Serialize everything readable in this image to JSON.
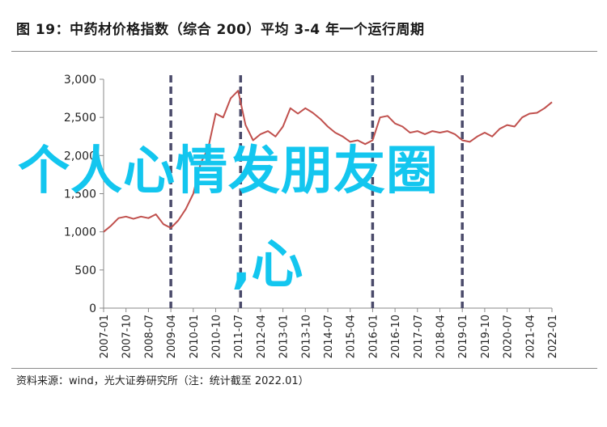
{
  "header": {
    "title": "图 19：中药材价格指数（综合 200）平均 3-4 年一个运行周期"
  },
  "footer": {
    "source": "资料来源：wind，光大证券研究所（注：统计截至 2022.01）"
  },
  "overlay": {
    "line1": "个人心情发朋友圈",
    "line2": ",心"
  },
  "chart_data": {
    "type": "line",
    "title": "",
    "xlabel": "",
    "ylabel": "",
    "ylim": [
      0,
      3000
    ],
    "yticks": [
      0,
      500,
      1000,
      1500,
      2000,
      2500,
      3000
    ],
    "ytick_labels": [
      "0",
      "500",
      "1,000",
      "1,500",
      "2,000",
      "2,500",
      "3,000"
    ],
    "xticks": [
      "2007-01",
      "2007-10",
      "2008-07",
      "2009-04",
      "2010-01",
      "2010-10",
      "2011-07",
      "2012-04",
      "2013-01",
      "2013-10",
      "2014-07",
      "2015-04",
      "2016-01",
      "2016-10",
      "2017-07",
      "2018-04",
      "2019-01",
      "2019-10",
      "2020-07",
      "2021-04",
      "2022-01"
    ],
    "grid": false,
    "legend": "none",
    "line_color": "#c0504d",
    "cycle_marker_color": "#4a4a6a",
    "cycle_markers": [
      "2009-04",
      "2011-08",
      "2016-01",
      "2019-01"
    ],
    "series": [
      {
        "x": [
          "2007-01",
          "2007-04",
          "2007-07",
          "2007-10",
          "2008-01",
          "2008-04",
          "2008-07",
          "2008-10",
          "2009-01",
          "2009-04",
          "2009-07",
          "2009-10",
          "2010-01",
          "2010-04",
          "2010-07",
          "2010-10",
          "2011-01",
          "2011-04",
          "2011-07",
          "2011-10",
          "2012-01",
          "2012-04",
          "2012-07",
          "2012-10",
          "2013-01",
          "2013-04",
          "2013-07",
          "2013-10",
          "2014-01",
          "2014-04",
          "2014-07",
          "2014-10",
          "2015-01",
          "2015-04",
          "2015-07",
          "2015-10",
          "2016-01",
          "2016-04",
          "2016-07",
          "2016-10",
          "2017-01",
          "2017-04",
          "2017-07",
          "2017-10",
          "2018-01",
          "2018-04",
          "2018-07",
          "2018-10",
          "2019-01",
          "2019-04",
          "2019-07",
          "2019-10",
          "2020-01",
          "2020-04",
          "2020-07",
          "2020-10",
          "2021-01",
          "2021-04",
          "2021-07",
          "2021-10",
          "2022-01"
        ],
        "values": [
          1000,
          1080,
          1180,
          1200,
          1170,
          1200,
          1180,
          1230,
          1100,
          1050,
          1150,
          1300,
          1500,
          1900,
          2100,
          2550,
          2500,
          2750,
          2850,
          2400,
          2200,
          2280,
          2320,
          2250,
          2380,
          2620,
          2550,
          2620,
          2560,
          2480,
          2380,
          2300,
          2250,
          2180,
          2200,
          2150,
          2200,
          2500,
          2520,
          2420,
          2380,
          2300,
          2320,
          2280,
          2320,
          2300,
          2320,
          2280,
          2200,
          2180,
          2250,
          2300,
          2250,
          2350,
          2400,
          2380,
          2500,
          2550,
          2560,
          2620,
          2700
        ]
      }
    ]
  }
}
